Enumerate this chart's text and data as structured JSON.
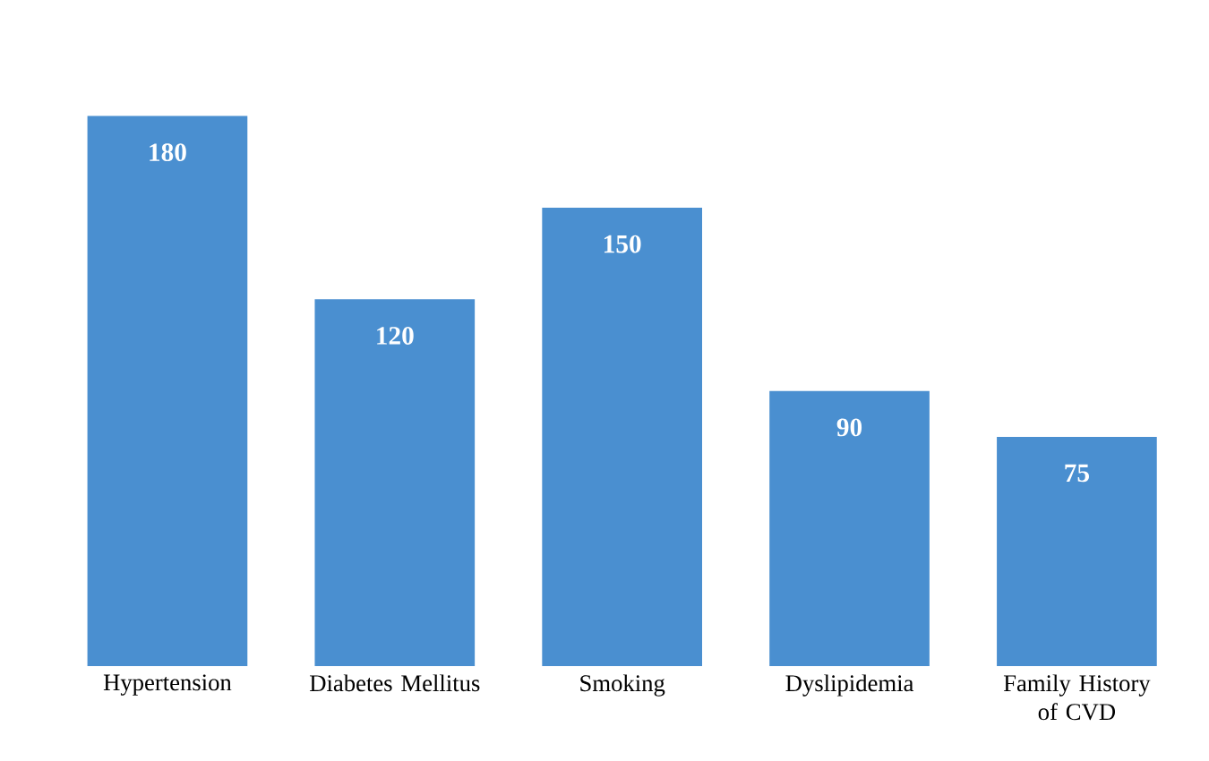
{
  "chart_data": {
    "type": "bar",
    "categories": [
      "Hypertension",
      "Diabetes Mellitus",
      "Smoking",
      "Dyslipidemia",
      "Family History of CVD"
    ],
    "values": [
      180,
      120,
      150,
      90,
      75
    ],
    "color": "#4a8fd0",
    "data_labels": true
  }
}
